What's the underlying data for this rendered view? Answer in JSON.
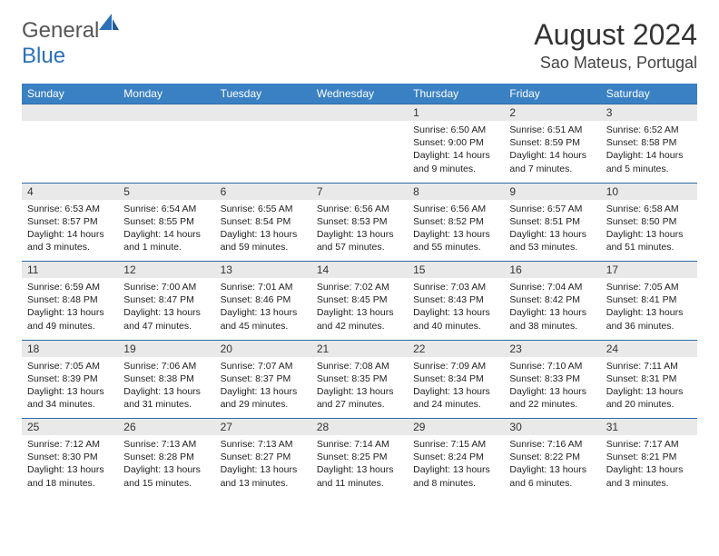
{
  "brand": {
    "part1": "General",
    "part2": "Blue"
  },
  "title": "August 2024",
  "location": "Sao Mateus, Portugal",
  "colors": {
    "header_bg": "#3a81c4",
    "header_text": "#ffffff",
    "daynum_bg": "#e9e9e9",
    "rule": "#2a6aa8",
    "brand_gray": "#555555",
    "brand_blue": "#2a71b8"
  },
  "day_headers": [
    "Sunday",
    "Monday",
    "Tuesday",
    "Wednesday",
    "Thursday",
    "Friday",
    "Saturday"
  ],
  "weeks": [
    [
      null,
      null,
      null,
      null,
      {
        "n": "1",
        "sr": "6:50 AM",
        "ss": "9:00 PM",
        "dl": "14 hours and 9 minutes."
      },
      {
        "n": "2",
        "sr": "6:51 AM",
        "ss": "8:59 PM",
        "dl": "14 hours and 7 minutes."
      },
      {
        "n": "3",
        "sr": "6:52 AM",
        "ss": "8:58 PM",
        "dl": "14 hours and 5 minutes."
      }
    ],
    [
      {
        "n": "4",
        "sr": "6:53 AM",
        "ss": "8:57 PM",
        "dl": "14 hours and 3 minutes."
      },
      {
        "n": "5",
        "sr": "6:54 AM",
        "ss": "8:55 PM",
        "dl": "14 hours and 1 minute."
      },
      {
        "n": "6",
        "sr": "6:55 AM",
        "ss": "8:54 PM",
        "dl": "13 hours and 59 minutes."
      },
      {
        "n": "7",
        "sr": "6:56 AM",
        "ss": "8:53 PM",
        "dl": "13 hours and 57 minutes."
      },
      {
        "n": "8",
        "sr": "6:56 AM",
        "ss": "8:52 PM",
        "dl": "13 hours and 55 minutes."
      },
      {
        "n": "9",
        "sr": "6:57 AM",
        "ss": "8:51 PM",
        "dl": "13 hours and 53 minutes."
      },
      {
        "n": "10",
        "sr": "6:58 AM",
        "ss": "8:50 PM",
        "dl": "13 hours and 51 minutes."
      }
    ],
    [
      {
        "n": "11",
        "sr": "6:59 AM",
        "ss": "8:48 PM",
        "dl": "13 hours and 49 minutes."
      },
      {
        "n": "12",
        "sr": "7:00 AM",
        "ss": "8:47 PM",
        "dl": "13 hours and 47 minutes."
      },
      {
        "n": "13",
        "sr": "7:01 AM",
        "ss": "8:46 PM",
        "dl": "13 hours and 45 minutes."
      },
      {
        "n": "14",
        "sr": "7:02 AM",
        "ss": "8:45 PM",
        "dl": "13 hours and 42 minutes."
      },
      {
        "n": "15",
        "sr": "7:03 AM",
        "ss": "8:43 PM",
        "dl": "13 hours and 40 minutes."
      },
      {
        "n": "16",
        "sr": "7:04 AM",
        "ss": "8:42 PM",
        "dl": "13 hours and 38 minutes."
      },
      {
        "n": "17",
        "sr": "7:05 AM",
        "ss": "8:41 PM",
        "dl": "13 hours and 36 minutes."
      }
    ],
    [
      {
        "n": "18",
        "sr": "7:05 AM",
        "ss": "8:39 PM",
        "dl": "13 hours and 34 minutes."
      },
      {
        "n": "19",
        "sr": "7:06 AM",
        "ss": "8:38 PM",
        "dl": "13 hours and 31 minutes."
      },
      {
        "n": "20",
        "sr": "7:07 AM",
        "ss": "8:37 PM",
        "dl": "13 hours and 29 minutes."
      },
      {
        "n": "21",
        "sr": "7:08 AM",
        "ss": "8:35 PM",
        "dl": "13 hours and 27 minutes."
      },
      {
        "n": "22",
        "sr": "7:09 AM",
        "ss": "8:34 PM",
        "dl": "13 hours and 24 minutes."
      },
      {
        "n": "23",
        "sr": "7:10 AM",
        "ss": "8:33 PM",
        "dl": "13 hours and 22 minutes."
      },
      {
        "n": "24",
        "sr": "7:11 AM",
        "ss": "8:31 PM",
        "dl": "13 hours and 20 minutes."
      }
    ],
    [
      {
        "n": "25",
        "sr": "7:12 AM",
        "ss": "8:30 PM",
        "dl": "13 hours and 18 minutes."
      },
      {
        "n": "26",
        "sr": "7:13 AM",
        "ss": "8:28 PM",
        "dl": "13 hours and 15 minutes."
      },
      {
        "n": "27",
        "sr": "7:13 AM",
        "ss": "8:27 PM",
        "dl": "13 hours and 13 minutes."
      },
      {
        "n": "28",
        "sr": "7:14 AM",
        "ss": "8:25 PM",
        "dl": "13 hours and 11 minutes."
      },
      {
        "n": "29",
        "sr": "7:15 AM",
        "ss": "8:24 PM",
        "dl": "13 hours and 8 minutes."
      },
      {
        "n": "30",
        "sr": "7:16 AM",
        "ss": "8:22 PM",
        "dl": "13 hours and 6 minutes."
      },
      {
        "n": "31",
        "sr": "7:17 AM",
        "ss": "8:21 PM",
        "dl": "13 hours and 3 minutes."
      }
    ]
  ],
  "labels": {
    "sunrise": "Sunrise: ",
    "sunset": "Sunset: ",
    "daylight": "Daylight: "
  }
}
